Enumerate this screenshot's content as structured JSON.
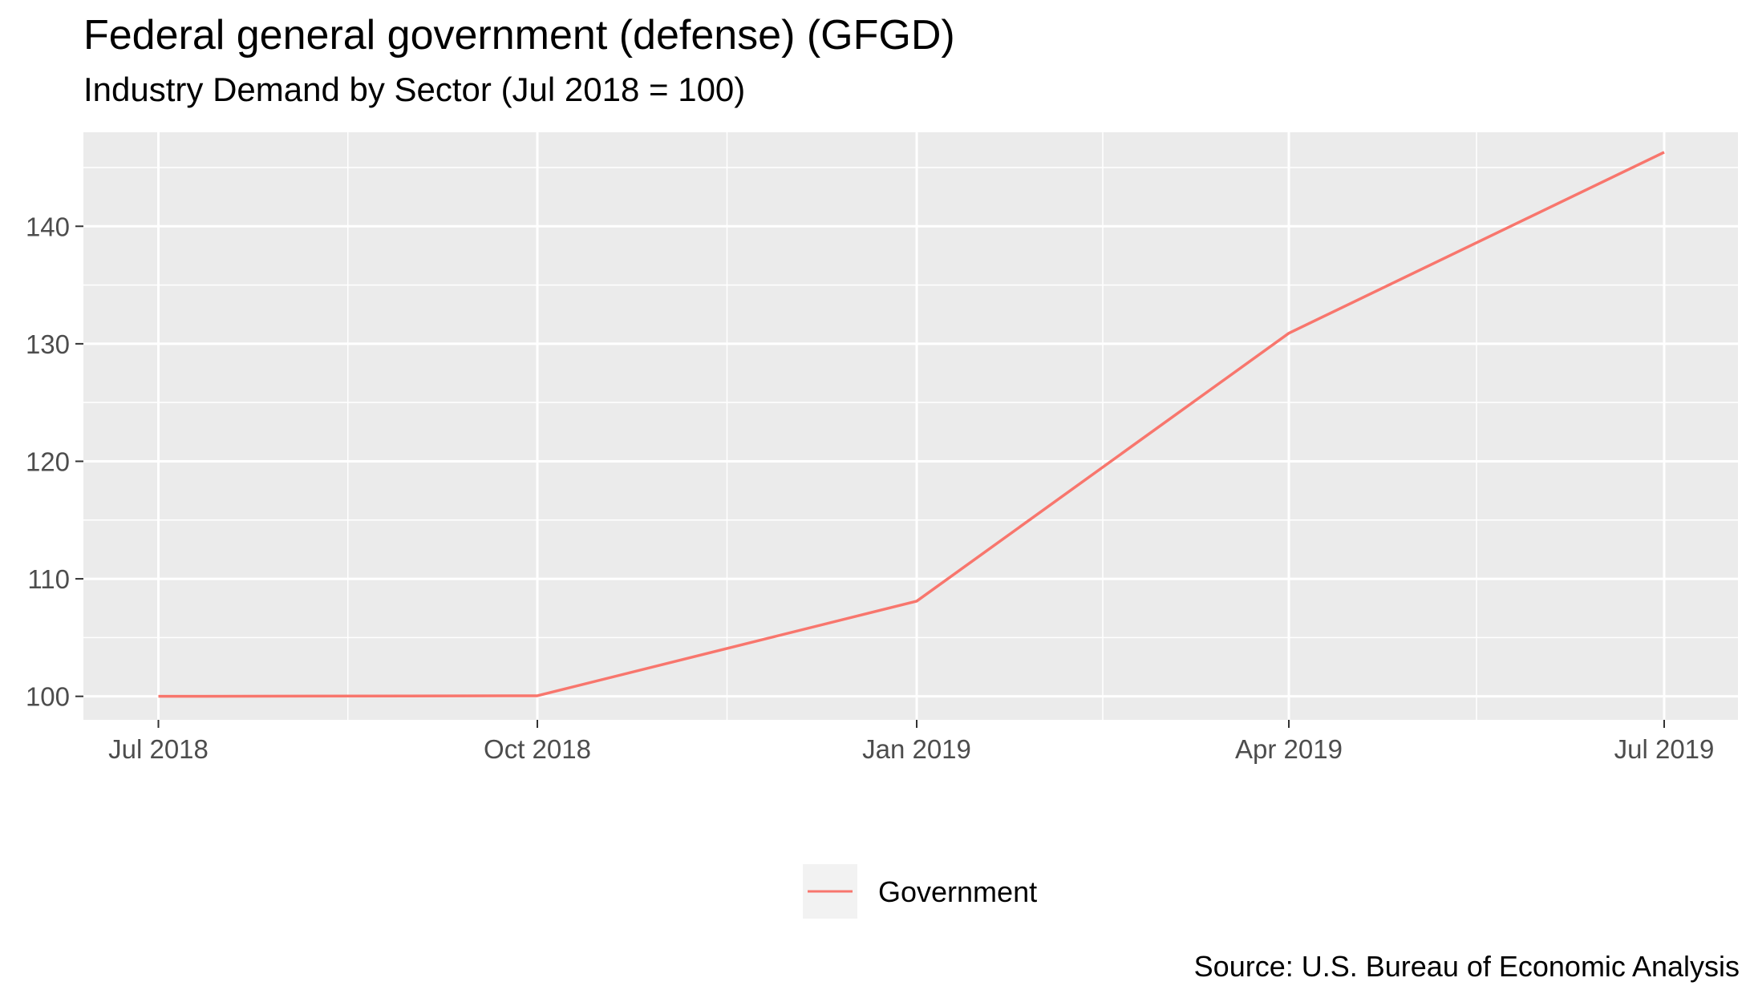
{
  "chart_data": {
    "type": "line",
    "title": "Federal general government (defense) (GFGD)",
    "subtitle": "Industry Demand by Sector (Jul 2018 = 100)",
    "caption": "Source: U.S. Bureau of Economic Analysis",
    "xlabel": "",
    "ylabel": "",
    "x": [
      "Jul 2018",
      "Oct 2018",
      "Jan 2019",
      "Apr 2019",
      "Jul 2019"
    ],
    "x_ticks": [
      "Jul 2018",
      "Oct 2018",
      "Jan 2019",
      "Apr 2019",
      "Jul 2019"
    ],
    "y_ticks": [
      100,
      110,
      120,
      130,
      140
    ],
    "ylim": [
      98,
      148
    ],
    "series": [
      {
        "name": "Government",
        "color": "#F8766D",
        "values": [
          100.0,
          100.05,
          108.1,
          130.9,
          146.3
        ]
      }
    ],
    "legend": {
      "position": "bottom"
    },
    "grid": true
  }
}
